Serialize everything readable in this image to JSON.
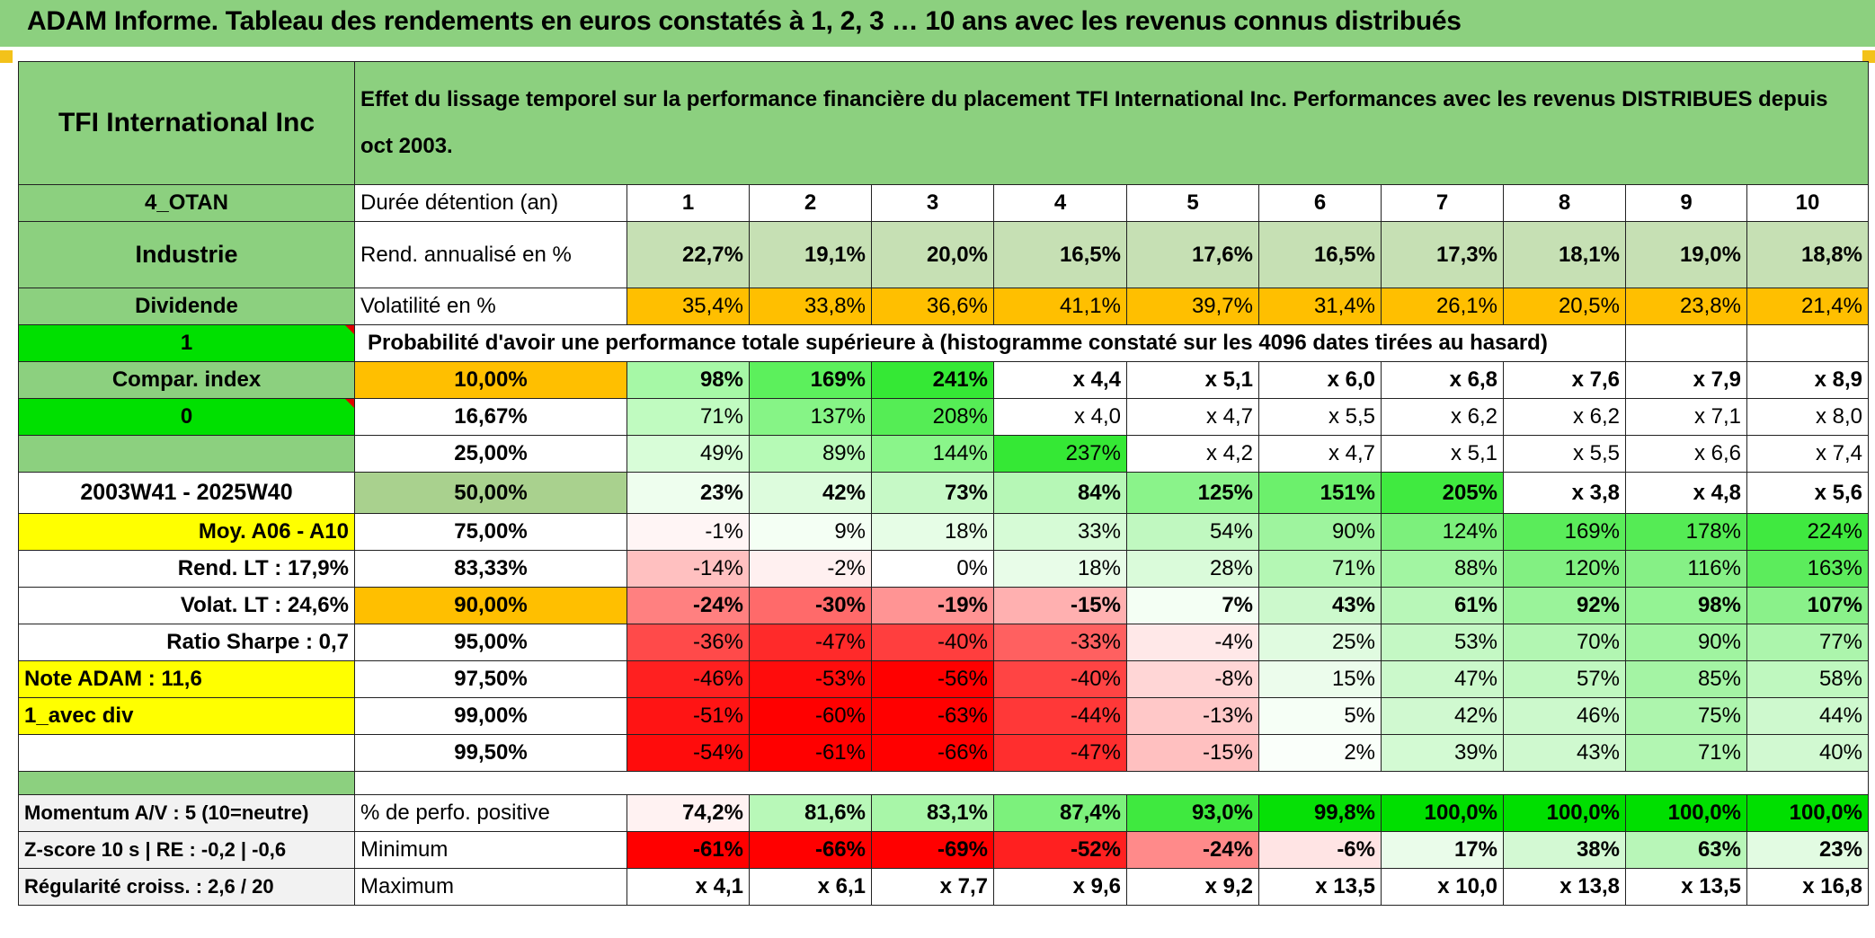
{
  "header": {
    "title": "ADAM Informe. Tableau des rendements en euros constatés à 1, 2, 3 … 10 ans avec les revenus connus distribués"
  },
  "left": {
    "company": "TFI International Inc",
    "code": "4_OTAN",
    "sector": "Industrie",
    "dividend_label": "Dividende",
    "value_1": "1",
    "compar_index": "Compar. index",
    "value_0": "0",
    "period": "2003W41 - 2025W40",
    "moy": "Moy. A06 - A10",
    "rend_lt": "Rend. LT :    17,9%",
    "volat_lt": "Volat. LT :    24,6%",
    "sharpe": "Ratio Sharpe :    0,7",
    "note": "Note ADAM : 11,6",
    "avec_div": "1_avec div",
    "momentum": "Momentum A/V : 5 (10=neutre)",
    "zscore": "Z-score 10 s | RE : -0,2 | -0,6",
    "regularite": "Régularité croiss. : 2,6 / 20"
  },
  "description": "Effet du lissage temporel sur la performance financière du placement TFI International Inc. Performances avec les revenus DISTRIBUES depuis oct 2003.",
  "durations": {
    "label": "Durée détention (an)",
    "values": [
      "1",
      "2",
      "3",
      "4",
      "5",
      "6",
      "7",
      "8",
      "9",
      "10"
    ]
  },
  "rend": {
    "label": "Rend. annualisé en %",
    "values": [
      "22,7%",
      "19,1%",
      "20,0%",
      "16,5%",
      "17,6%",
      "16,5%",
      "17,3%",
      "18,1%",
      "19,0%",
      "18,8%"
    ],
    "color": "#c6e0b4"
  },
  "volat": {
    "label": "Volatilité en %",
    "values": [
      "35,4%",
      "33,8%",
      "36,6%",
      "41,1%",
      "39,7%",
      "31,4%",
      "26,1%",
      "20,5%",
      "23,8%",
      "21,4%"
    ],
    "color": "#ffbf00"
  },
  "prob_title": "Probabilité d'avoir une performance totale supérieure à (histogramme constaté sur les 4096 dates tirées au hasard)",
  "prob": [
    {
      "p": "10,00%",
      "values": [
        "98%",
        "169%",
        "241%",
        "x 4,4",
        "x 5,1",
        "x 6,0",
        "x 6,8",
        "x 7,6",
        "x 7,9",
        "x 8,9"
      ],
      "colors": [
        "#a6f8a6",
        "#5cf05c",
        "#35e835",
        "#fff",
        "#fff",
        "#fff",
        "#fff",
        "#fff",
        "#fff",
        "#fff"
      ]
    },
    {
      "p": "16,67%",
      "values": [
        "71%",
        "137%",
        "208%",
        "x 4,0",
        "x 4,7",
        "x 5,5",
        "x 6,2",
        "x 6,2",
        "x 7,1",
        "x 8,0"
      ],
      "colors": [
        "#c0fbc0",
        "#86f486",
        "#55ed55",
        "#fff",
        "#fff",
        "#fff",
        "#fff",
        "#fff",
        "#fff",
        "#fff"
      ]
    },
    {
      "p": "25,00%",
      "values": [
        "49%",
        "89%",
        "144%",
        "237%",
        "x 4,2",
        "x 4,7",
        "x 5,1",
        "x 5,5",
        "x 6,6",
        "x 7,4"
      ],
      "colors": [
        "#d8fdd8",
        "#b6fab6",
        "#8af58a",
        "#35e835",
        "#fff",
        "#fff",
        "#fff",
        "#fff",
        "#fff",
        "#fff"
      ]
    },
    {
      "p": "50,00%",
      "values": [
        "23%",
        "42%",
        "73%",
        "84%",
        "125%",
        "151%",
        "205%",
        "x 3,8",
        "x 4,8",
        "x 5,6"
      ],
      "colors": [
        "#eefeee",
        "#ddfcdd",
        "#c6f9c6",
        "#b6f7b6",
        "#8af38a",
        "#6cf06c",
        "#40ea40",
        "#fff",
        "#fff",
        "#fff"
      ]
    },
    {
      "p": "75,00%",
      "values": [
        "-1%",
        "9%",
        "18%",
        "33%",
        "54%",
        "90%",
        "124%",
        "169%",
        "178%",
        "224%"
      ],
      "colors": [
        "#fff5f5",
        "#f4fff4",
        "#e6fde6",
        "#d6fbd6",
        "#c0f8c0",
        "#9ef49e",
        "#7cf07c",
        "#5aec5a",
        "#55eb55",
        "#40e940"
      ]
    },
    {
      "p": "83,33%",
      "values": [
        "-14%",
        "-2%",
        "0%",
        "18%",
        "28%",
        "71%",
        "88%",
        "120%",
        "116%",
        "163%"
      ],
      "colors": [
        "#ffc0c0",
        "#fff0f0",
        "#ffffff",
        "#e8fce8",
        "#dafbda",
        "#b4f7b4",
        "#a2f5a2",
        "#82f082",
        "#86f086",
        "#5cec5c"
      ]
    },
    {
      "p": "90,00%",
      "values": [
        "-24%",
        "-30%",
        "-19%",
        "-15%",
        "7%",
        "43%",
        "61%",
        "92%",
        "98%",
        "107%"
      ],
      "colors": [
        "#ff8080",
        "#ff6a6a",
        "#ff9494",
        "#ffb0b0",
        "#f4fff4",
        "#ccf9cc",
        "#b8f7b8",
        "#9af39a",
        "#94f394",
        "#8af18a"
      ]
    },
    {
      "p": "95,00%",
      "values": [
        "-36%",
        "-47%",
        "-40%",
        "-33%",
        "-4%",
        "25%",
        "53%",
        "70%",
        "90%",
        "77%"
      ],
      "colors": [
        "#ff4a4a",
        "#ff2a2a",
        "#ff3e3e",
        "#ff6060",
        "#ffe8e8",
        "#e0fbe0",
        "#c4f8c4",
        "#b2f6b2",
        "#a0f4a0",
        "#acf5ac"
      ]
    },
    {
      "p": "97,50%",
      "values": [
        "-46%",
        "-53%",
        "-56%",
        "-40%",
        "-8%",
        "15%",
        "47%",
        "57%",
        "85%",
        "58%"
      ],
      "colors": [
        "#ff2020",
        "#ff0c0c",
        "#ff0000",
        "#ff4444",
        "#ffd6d6",
        "#ecfcec",
        "#cbf9cb",
        "#c0f8c0",
        "#a4f4a4",
        "#bff8bf"
      ]
    },
    {
      "p": "99,00%",
      "values": [
        "-51%",
        "-60%",
        "-63%",
        "-44%",
        "-13%",
        "5%",
        "42%",
        "46%",
        "75%",
        "44%"
      ],
      "colors": [
        "#ff1414",
        "#ff0000",
        "#ff0000",
        "#ff3838",
        "#ffc8c8",
        "#f6fff6",
        "#d0f9d0",
        "#ccf9cc",
        "#adf5ad",
        "#cef9ce"
      ]
    },
    {
      "p": "99,50%",
      "values": [
        "-54%",
        "-61%",
        "-66%",
        "-47%",
        "-15%",
        "2%",
        "39%",
        "43%",
        "71%",
        "40%"
      ],
      "colors": [
        "#ff0c0c",
        "#ff0000",
        "#ff0000",
        "#ff2e2e",
        "#ffc0c0",
        "#fafffa",
        "#d3fad3",
        "#cff9cf",
        "#b2f6b2",
        "#d1f9d1"
      ]
    }
  ],
  "positive": {
    "label": "% de perfo. positive",
    "values": [
      "74,2%",
      "81,6%",
      "83,1%",
      "87,4%",
      "93,0%",
      "99,8%",
      "100,0%",
      "100,0%",
      "100,0%",
      "100,0%"
    ],
    "colors": [
      "#fff2f2",
      "#b8f8b8",
      "#a8f6a8",
      "#7cf17c",
      "#3fe93f",
      "#06e006",
      "#00df00",
      "#00df00",
      "#00df00",
      "#00df00"
    ]
  },
  "minimum": {
    "label": "Minimum",
    "values": [
      "-61%",
      "-66%",
      "-69%",
      "-52%",
      "-24%",
      "-6%",
      "17%",
      "38%",
      "63%",
      "23%"
    ],
    "colors": [
      "#ff0000",
      "#ff0000",
      "#ff0000",
      "#ff2020",
      "#ff8a8a",
      "#ffe4e4",
      "#eafcea",
      "#d3f9d3",
      "#b8f6b8",
      "#e2fbe2"
    ]
  },
  "maximum": {
    "label": "Maximum",
    "values": [
      "x 4,1",
      "x 6,1",
      "x 7,7",
      "x 9,6",
      "x 9,2",
      "x 13,5",
      "x 10,0",
      "x 13,8",
      "x 13,5",
      "x 16,8"
    ]
  }
}
